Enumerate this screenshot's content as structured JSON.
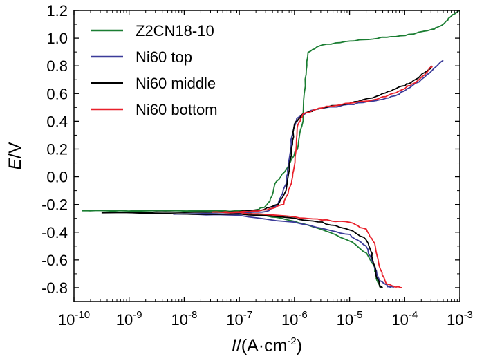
{
  "chart_data": {
    "type": "line",
    "title": "",
    "xlabel": {
      "symbol": "I",
      "unit": "/(A·cm",
      "sup": "-2",
      "close": ")"
    },
    "ylabel": {
      "symbol": "E",
      "unit": "/V"
    },
    "xscale": "log",
    "xlim_log10": [
      -10,
      -3
    ],
    "ylim": [
      -0.9,
      1.2
    ],
    "x_ticks": [
      {
        "base": "10",
        "exp": "-10"
      },
      {
        "base": "10",
        "exp": "-9"
      },
      {
        "base": "10",
        "exp": "-8"
      },
      {
        "base": "10",
        "exp": "-7"
      },
      {
        "base": "10",
        "exp": "-6"
      },
      {
        "base": "10",
        "exp": "-5"
      },
      {
        "base": "10",
        "exp": "-4"
      },
      {
        "base": "10",
        "exp": "-3"
      }
    ],
    "y_ticks": [
      "-0.8",
      "-0.6",
      "-0.4",
      "-0.2",
      "0.0",
      "0.2",
      "0.4",
      "0.6",
      "0.8",
      "1.0",
      "1.2"
    ],
    "legend_position": "top-left",
    "series": [
      {
        "name": "Z2CN18-10",
        "color": "#1a7d32",
        "points": [
          [
            -9.85,
            -0.245
          ],
          [
            -9.0,
            -0.245
          ],
          [
            -8.0,
            -0.245
          ],
          [
            -7.0,
            -0.245
          ],
          [
            -6.7,
            -0.24
          ],
          [
            -6.55,
            -0.22
          ],
          [
            -6.45,
            -0.18
          ],
          [
            -6.35,
            -0.05
          ],
          [
            -6.15,
            0.05
          ],
          [
            -5.95,
            0.2
          ],
          [
            -5.85,
            0.4
          ],
          [
            -5.8,
            0.7
          ],
          [
            -5.75,
            0.9
          ],
          [
            -5.5,
            0.95
          ],
          [
            -5.0,
            0.98
          ],
          [
            -4.5,
            1.0
          ],
          [
            -4.0,
            1.02
          ],
          [
            -3.5,
            1.06
          ],
          [
            -3.3,
            1.1
          ],
          [
            -3.15,
            1.16
          ],
          [
            -3.0,
            1.2
          ],
          null,
          [
            -9.85,
            -0.245
          ],
          [
            -7.0,
            -0.25
          ],
          [
            -6.5,
            -0.28
          ],
          [
            -6.0,
            -0.32
          ],
          [
            -5.5,
            -0.38
          ],
          [
            -5.0,
            -0.46
          ],
          [
            -4.7,
            -0.55
          ],
          [
            -4.55,
            -0.65
          ],
          [
            -4.5,
            -0.75
          ],
          [
            -4.45,
            -0.79
          ],
          [
            -4.4,
            -0.8
          ]
        ]
      },
      {
        "name": "Ni60  top",
        "color": "#3b3b99",
        "points": [
          [
            -8.2,
            -0.27
          ],
          [
            -7.0,
            -0.265
          ],
          [
            -6.5,
            -0.25
          ],
          [
            -6.3,
            -0.2
          ],
          [
            -6.15,
            -0.05
          ],
          [
            -6.1,
            0.1
          ],
          [
            -6.05,
            0.3
          ],
          [
            -5.95,
            0.42
          ],
          [
            -5.7,
            0.48
          ],
          [
            -5.0,
            0.52
          ],
          [
            -4.5,
            0.55
          ],
          [
            -4.2,
            0.58
          ],
          [
            -4.0,
            0.62
          ],
          [
            -3.7,
            0.7
          ],
          [
            -3.5,
            0.77
          ],
          [
            -3.3,
            0.84
          ],
          null,
          [
            -8.2,
            -0.27
          ],
          [
            -7.0,
            -0.28
          ],
          [
            -6.0,
            -0.33
          ],
          [
            -5.5,
            -0.37
          ],
          [
            -5.0,
            -0.42
          ],
          [
            -4.7,
            -0.5
          ],
          [
            -4.55,
            -0.65
          ],
          [
            -4.45,
            -0.75
          ],
          [
            -4.3,
            -0.79
          ],
          [
            -4.2,
            -0.8
          ]
        ]
      },
      {
        "name": "Ni60 middle",
        "color": "#000000",
        "points": [
          [
            -9.5,
            -0.26
          ],
          [
            -8.0,
            -0.255
          ],
          [
            -7.0,
            -0.25
          ],
          [
            -6.6,
            -0.24
          ],
          [
            -6.3,
            -0.2
          ],
          [
            -6.15,
            -0.1
          ],
          [
            -6.05,
            0.2
          ],
          [
            -6.0,
            0.38
          ],
          [
            -5.85,
            0.45
          ],
          [
            -5.5,
            0.5
          ],
          [
            -5.0,
            0.53
          ],
          [
            -4.5,
            0.58
          ],
          [
            -4.2,
            0.63
          ],
          [
            -4.0,
            0.66
          ],
          [
            -3.8,
            0.7
          ],
          [
            -3.55,
            0.78
          ],
          [
            -3.5,
            0.8
          ],
          null,
          [
            -9.5,
            -0.26
          ],
          [
            -7.0,
            -0.27
          ],
          [
            -6.0,
            -0.3
          ],
          [
            -5.5,
            -0.33
          ],
          [
            -5.0,
            -0.38
          ],
          [
            -4.7,
            -0.45
          ],
          [
            -4.6,
            -0.55
          ],
          [
            -4.52,
            -0.7
          ],
          [
            -4.45,
            -0.79
          ],
          [
            -4.4,
            -0.8
          ]
        ]
      },
      {
        "name": "Ni60 bottom",
        "color": "#e8202a",
        "points": [
          [
            -7.5,
            -0.255
          ],
          [
            -7.0,
            -0.255
          ],
          [
            -6.5,
            -0.24
          ],
          [
            -6.2,
            -0.2
          ],
          [
            -6.05,
            -0.05
          ],
          [
            -6.0,
            0.1
          ],
          [
            -5.95,
            0.35
          ],
          [
            -5.85,
            0.45
          ],
          [
            -5.5,
            0.5
          ],
          [
            -5.0,
            0.53
          ],
          [
            -4.5,
            0.56
          ],
          [
            -4.2,
            0.6
          ],
          [
            -4.0,
            0.64
          ],
          [
            -3.8,
            0.68
          ],
          [
            -3.6,
            0.75
          ],
          [
            -3.5,
            0.8
          ],
          null,
          [
            -7.5,
            -0.255
          ],
          [
            -7.0,
            -0.26
          ],
          [
            -6.0,
            -0.29
          ],
          [
            -5.5,
            -0.31
          ],
          [
            -5.0,
            -0.33
          ],
          [
            -4.7,
            -0.38
          ],
          [
            -4.55,
            -0.48
          ],
          [
            -4.45,
            -0.65
          ],
          [
            -4.35,
            -0.77
          ],
          [
            -4.2,
            -0.79
          ],
          [
            -4.05,
            -0.8
          ]
        ]
      }
    ]
  }
}
